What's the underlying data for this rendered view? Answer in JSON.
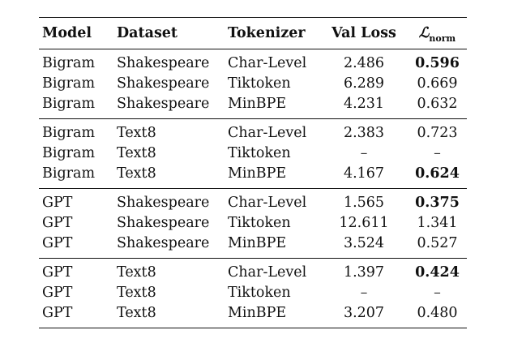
{
  "table": {
    "headers": {
      "model": "Model",
      "dataset": "Dataset",
      "tokenizer": "Tokenizer",
      "val_loss": "Val Loss",
      "norm_symbol": "ℒ",
      "norm_subscript": "norm"
    },
    "groups": [
      {
        "rows": [
          {
            "model": "Bigram",
            "dataset": "Shakespeare",
            "tokenizer": "Char-Level",
            "val_loss": "2.486",
            "norm": "0.596",
            "norm_bold": true
          },
          {
            "model": "Bigram",
            "dataset": "Shakespeare",
            "tokenizer": "Tiktoken",
            "val_loss": "6.289",
            "norm": "0.669",
            "norm_bold": false
          },
          {
            "model": "Bigram",
            "dataset": "Shakespeare",
            "tokenizer": "MinBPE",
            "val_loss": "4.231",
            "norm": "0.632",
            "norm_bold": false
          }
        ]
      },
      {
        "rows": [
          {
            "model": "Bigram",
            "dataset": "Text8",
            "tokenizer": "Char-Level",
            "val_loss": "2.383",
            "norm": "0.723",
            "norm_bold": false
          },
          {
            "model": "Bigram",
            "dataset": "Text8",
            "tokenizer": "Tiktoken",
            "val_loss": "–",
            "norm": "–",
            "norm_bold": false
          },
          {
            "model": "Bigram",
            "dataset": "Text8",
            "tokenizer": "MinBPE",
            "val_loss": "4.167",
            "norm": "0.624",
            "norm_bold": true
          }
        ]
      },
      {
        "rows": [
          {
            "model": "GPT",
            "dataset": "Shakespeare",
            "tokenizer": "Char-Level",
            "val_loss": "1.565",
            "norm": "0.375",
            "norm_bold": true
          },
          {
            "model": "GPT",
            "dataset": "Shakespeare",
            "tokenizer": "Tiktoken",
            "val_loss": "12.611",
            "norm": "1.341",
            "norm_bold": false
          },
          {
            "model": "GPT",
            "dataset": "Shakespeare",
            "tokenizer": "MinBPE",
            "val_loss": "3.524",
            "norm": "0.527",
            "norm_bold": false
          }
        ]
      },
      {
        "rows": [
          {
            "model": "GPT",
            "dataset": "Text8",
            "tokenizer": "Char-Level",
            "val_loss": "1.397",
            "norm": "0.424",
            "norm_bold": true
          },
          {
            "model": "GPT",
            "dataset": "Text8",
            "tokenizer": "Tiktoken",
            "val_loss": "–",
            "norm": "–",
            "norm_bold": false
          },
          {
            "model": "GPT",
            "dataset": "Text8",
            "tokenizer": "MinBPE",
            "val_loss": "3.207",
            "norm": "0.480",
            "norm_bold": false
          }
        ]
      }
    ]
  }
}
